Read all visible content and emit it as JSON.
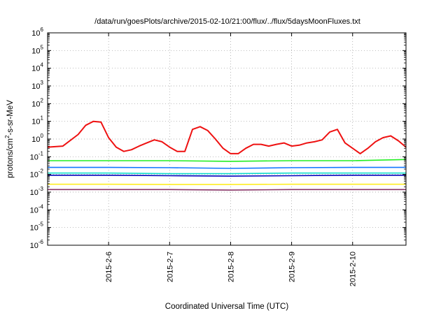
{
  "chart_data": {
    "type": "line",
    "title": "/data/run/goesPlots/archive/2015-02-10/21:00/flux/../flux/5daysMoonFluxes.txt",
    "xlabel": "Coordinated Universal Time (UTC)",
    "ylabel": {
      "prefix": "protons/cm",
      "superscript": "2",
      "suffix": "-s-sr-MeV"
    },
    "y_scale": "log",
    "ylim": [
      1e-06,
      1000000.0
    ],
    "y_ticks": [
      {
        "value": 1e-06,
        "base": "10",
        "exp": "-6"
      },
      {
        "value": 1e-05,
        "base": "10",
        "exp": "-5"
      },
      {
        "value": 0.0001,
        "base": "10",
        "exp": "-4"
      },
      {
        "value": 0.001,
        "base": "10",
        "exp": "-3"
      },
      {
        "value": 0.01,
        "base": "10",
        "exp": "-2"
      },
      {
        "value": 0.1,
        "base": "10",
        "exp": "-1"
      },
      {
        "value": 1,
        "base": "10",
        "exp": "0"
      },
      {
        "value": 10,
        "base": "10",
        "exp": "1"
      },
      {
        "value": 100,
        "base": "10",
        "exp": "2"
      },
      {
        "value": 1000,
        "base": "10",
        "exp": "3"
      },
      {
        "value": 10000,
        "base": "10",
        "exp": "4"
      },
      {
        "value": 100000,
        "base": "10",
        "exp": "5"
      },
      {
        "value": 1000000,
        "base": "10",
        "exp": "6"
      }
    ],
    "xlim": [
      "2015-02-05T00:00",
      "2015-02-10T21:00"
    ],
    "x_ticks": [
      {
        "date": "2015-02-06T00:00",
        "label": "2015-2-6"
      },
      {
        "date": "2015-02-07T00:00",
        "label": "2015-2-7"
      },
      {
        "date": "2015-02-08T00:00",
        "label": "2015-2-8"
      },
      {
        "date": "2015-02-09T00:00",
        "label": "2015-2-9"
      },
      {
        "date": "2015-02-10T00:00",
        "label": "2015-2-10"
      }
    ],
    "grid": true,
    "series": [
      {
        "color": "#ee1111",
        "x": [
          "2015-02-05T00:00",
          "2015-02-05T06:00",
          "2015-02-05T12:00",
          "2015-02-05T15:00",
          "2015-02-05T18:00",
          "2015-02-05T21:00",
          "2015-02-06T00:00",
          "2015-02-06T03:00",
          "2015-02-06T06:00",
          "2015-02-06T09:00",
          "2015-02-06T12:00",
          "2015-02-06T15:00",
          "2015-02-06T18:00",
          "2015-02-06T21:00",
          "2015-02-07T00:00",
          "2015-02-07T03:00",
          "2015-02-07T06:00",
          "2015-02-07T09:00",
          "2015-02-07T12:00",
          "2015-02-07T15:00",
          "2015-02-07T18:00",
          "2015-02-07T21:00",
          "2015-02-08T00:00",
          "2015-02-08T03:00",
          "2015-02-08T06:00",
          "2015-02-08T09:00",
          "2015-02-08T12:00",
          "2015-02-08T15:00",
          "2015-02-08T18:00",
          "2015-02-08T21:00",
          "2015-02-09T00:00",
          "2015-02-09T03:00",
          "2015-02-09T06:00",
          "2015-02-09T09:00",
          "2015-02-09T12:00",
          "2015-02-09T15:00",
          "2015-02-09T18:00",
          "2015-02-09T21:00",
          "2015-02-10T00:00",
          "2015-02-10T03:00",
          "2015-02-10T06:00",
          "2015-02-10T09:00",
          "2015-02-10T12:00",
          "2015-02-10T15:00",
          "2015-02-10T18:00",
          "2015-02-10T21:00"
        ],
        "values": [
          0.35,
          0.4,
          1.8,
          6,
          10,
          9,
          1.2,
          0.35,
          0.2,
          0.25,
          0.4,
          0.6,
          0.9,
          0.7,
          0.35,
          0.2,
          0.2,
          3.5,
          5,
          3,
          1,
          0.3,
          0.15,
          0.15,
          0.3,
          0.5,
          0.5,
          0.4,
          0.5,
          0.6,
          0.4,
          0.45,
          0.6,
          0.7,
          0.9,
          2.5,
          3.5,
          0.6,
          0.3,
          0.15,
          0.3,
          0.7,
          1.2,
          1.5,
          0.8,
          0.35
        ]
      },
      {
        "color": "#22ee22",
        "x": [
          "2015-02-05T00:00",
          "2015-02-06T00:00",
          "2015-02-07T00:00",
          "2015-02-08T00:00",
          "2015-02-09T00:00",
          "2015-02-10T00:00",
          "2015-02-10T21:00"
        ],
        "values": [
          0.06,
          0.06,
          0.06,
          0.055,
          0.06,
          0.06,
          0.07
        ]
      },
      {
        "color": "#1177ff",
        "x": [
          "2015-02-05T00:00",
          "2015-02-06T00:00",
          "2015-02-07T00:00",
          "2015-02-08T00:00",
          "2015-02-09T00:00",
          "2015-02-10T00:00",
          "2015-02-10T21:00"
        ],
        "values": [
          0.025,
          0.025,
          0.024,
          0.022,
          0.024,
          0.025,
          0.025
        ]
      },
      {
        "color": "#11ddcc",
        "x": [
          "2015-02-05T00:00",
          "2015-02-06T00:00",
          "2015-02-07T00:00",
          "2015-02-08T00:00",
          "2015-02-09T00:00",
          "2015-02-10T00:00",
          "2015-02-10T21:00"
        ],
        "values": [
          0.012,
          0.012,
          0.011,
          0.011,
          0.012,
          0.012,
          0.012
        ]
      },
      {
        "color": "#0000bb",
        "x": [
          "2015-02-05T00:00",
          "2015-02-06T00:00",
          "2015-02-07T00:00",
          "2015-02-08T00:00",
          "2015-02-09T00:00",
          "2015-02-10T00:00",
          "2015-02-10T21:00"
        ],
        "values": [
          0.009,
          0.009,
          0.0085,
          0.008,
          0.0085,
          0.009,
          0.009
        ]
      },
      {
        "color": "#ffee22",
        "x": [
          "2015-02-05T00:00",
          "2015-02-06T00:00",
          "2015-02-07T00:00",
          "2015-02-08T00:00",
          "2015-02-09T00:00",
          "2015-02-10T00:00",
          "2015-02-10T21:00"
        ],
        "values": [
          0.0028,
          0.0028,
          0.0027,
          0.0027,
          0.0028,
          0.0028,
          0.0028
        ]
      },
      {
        "color": "#883366",
        "x": [
          "2015-02-05T00:00",
          "2015-02-06T00:00",
          "2015-02-07T00:00",
          "2015-02-08T00:00",
          "2015-02-09T00:00",
          "2015-02-10T00:00",
          "2015-02-10T21:00"
        ],
        "values": [
          0.0014,
          0.0014,
          0.0014,
          0.0013,
          0.0014,
          0.0014,
          0.0014
        ]
      }
    ]
  }
}
